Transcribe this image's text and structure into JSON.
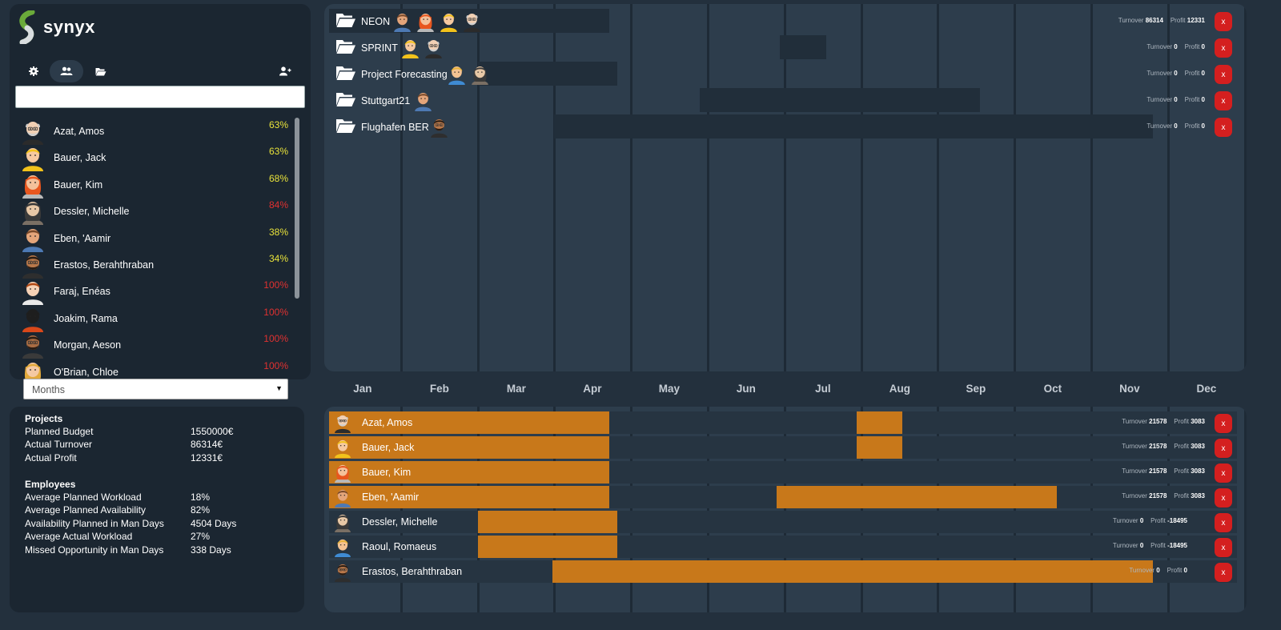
{
  "app": {
    "name": "synyx",
    "brand_color": "#6aaa3a"
  },
  "toolbar": {
    "icons": [
      "gear-icon",
      "users-icon",
      "folder-open-icon",
      "add-user-icon"
    ],
    "active": "users-icon"
  },
  "search": {
    "value": "",
    "placeholder": ""
  },
  "employees": [
    {
      "name": "Azat, Amos",
      "pct": "63%",
      "level": "medium",
      "avatar": "bald-man"
    },
    {
      "name": "Bauer, Jack",
      "pct": "63%",
      "level": "medium",
      "avatar": "blond-man"
    },
    {
      "name": "Bauer, Kim",
      "pct": "68%",
      "level": "medium",
      "avatar": "red-hair-woman"
    },
    {
      "name": "Dessler, Michelle",
      "pct": "84%",
      "level": "high",
      "avatar": "dark-hair-woman"
    },
    {
      "name": "Eben, 'Aamir",
      "pct": "38%",
      "level": "medium",
      "avatar": "brown-hair-man"
    },
    {
      "name": "Erastos, Berahthraban",
      "pct": "34%",
      "level": "medium",
      "avatar": "bearded-man"
    },
    {
      "name": "Faraj, Enéas",
      "pct": "100%",
      "level": "high",
      "avatar": "young-man"
    },
    {
      "name": "Joakim, Rama",
      "pct": "100%",
      "level": "high",
      "avatar": "silhouette"
    },
    {
      "name": "Morgan, Aeson",
      "pct": "100%",
      "level": "high",
      "avatar": "glasses-man"
    },
    {
      "name": "O'Brian, Chloe",
      "pct": "100%",
      "level": "high",
      "avatar": "blonde-woman"
    }
  ],
  "view_select": {
    "value": "Months"
  },
  "stats": {
    "projects_heading": "Projects",
    "projects": [
      {
        "label": "Planned Budget",
        "value": "1550000€"
      },
      {
        "label": "Actual Turnover",
        "value": "86314€"
      },
      {
        "label": "Actual Profit",
        "value": "12331€"
      }
    ],
    "employees_heading": "Employees",
    "employees": [
      {
        "label": "Average Planned Workload",
        "value": "18%"
      },
      {
        "label": "Average Planned Availability",
        "value": "82%"
      },
      {
        "label": "Availability Planned in Man Days",
        "value": "4504 Days"
      },
      {
        "label": "Average Actual Workload",
        "value": "27%"
      },
      {
        "label": "Missed Opportunity in Man Days",
        "value": "338 Days"
      }
    ]
  },
  "months": [
    "Jan",
    "Feb",
    "Mar",
    "Apr",
    "May",
    "Jun",
    "Jul",
    "Aug",
    "Sep",
    "Oct",
    "Nov",
    "Dec"
  ],
  "labels": {
    "turnover": "Turnover",
    "profit": "Profit",
    "remove": "x"
  },
  "projects": [
    {
      "name": "NEON",
      "turnover": "86314",
      "profit": "12331",
      "avatars": [
        "brown-hair-man",
        "red-hair-woman",
        "blond-man",
        "bald-man"
      ]
    },
    {
      "name": "SPRINT",
      "turnover": "0",
      "profit": "0",
      "avatars": [
        "blond-man",
        "bald-man"
      ]
    },
    {
      "name": "Project Forecasting",
      "turnover": "0",
      "profit": "0",
      "avatars": [
        "blonde-man-2",
        "dark-hair-woman"
      ]
    },
    {
      "name": "Stuttgart21",
      "turnover": "0",
      "profit": "0",
      "avatars": [
        "brown-hair-man"
      ]
    },
    {
      "name": "Flughafen BER",
      "turnover": "0",
      "profit": "0",
      "avatars": [
        "bearded-man"
      ]
    }
  ],
  "assignments": [
    {
      "name": "Azat, Amos",
      "turnover": "21578",
      "profit": "3083",
      "avatar": "bald-man"
    },
    {
      "name": "Bauer, Jack",
      "turnover": "21578",
      "profit": "3083",
      "avatar": "blond-man"
    },
    {
      "name": "Bauer, Kim",
      "turnover": "21578",
      "profit": "3083",
      "avatar": "red-hair-woman"
    },
    {
      "name": "Eben, 'Aamir",
      "turnover": "21578",
      "profit": "3083",
      "avatar": "brown-hair-man"
    },
    {
      "name": "Dessler, Michelle",
      "turnover": "0",
      "profit": "-18495",
      "avatar": "dark-hair-woman"
    },
    {
      "name": "Raoul, Romaeus",
      "turnover": "0",
      "profit": "-18495",
      "avatar": "blonde-man-2"
    },
    {
      "name": "Erastos, Berahthraban",
      "turnover": "0",
      "profit": "0",
      "avatar": "bearded-man"
    }
  ],
  "colors": {
    "bar_orange": "#c8781a",
    "pct_medium": "#e8e23a",
    "pct_high": "#e03131",
    "remove_button": "#d41f1f"
  }
}
